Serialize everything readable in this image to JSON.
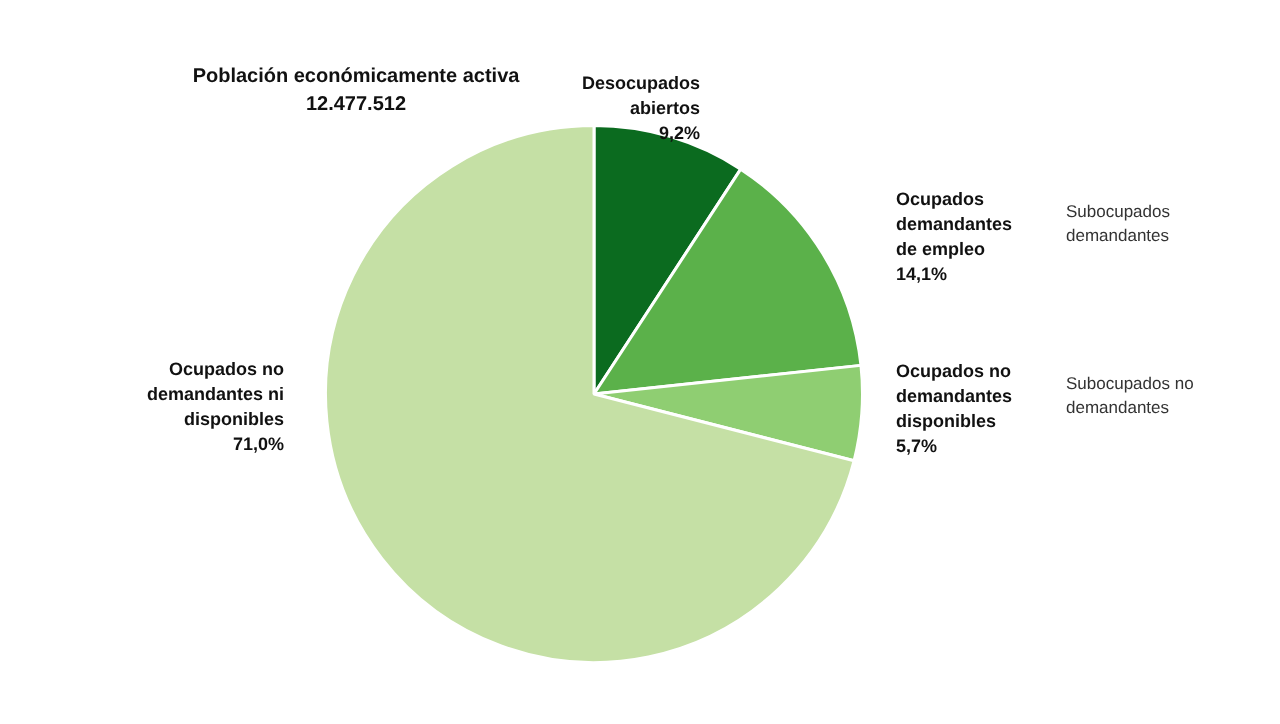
{
  "chart_data": {
    "type": "pie",
    "title": "Población económicamente activa",
    "subtitle": "12.477.512",
    "categories": [
      "Desocupados abiertos",
      "Ocupados demandantes de empleo",
      "Ocupados no demandantes disponibles",
      "Ocupados no demandantes ni disponibles"
    ],
    "values": [
      9.2,
      14.1,
      5.7,
      71.0
    ],
    "value_labels": [
      "9,2%",
      "14,1%",
      "5,7%",
      "71,0%"
    ],
    "colors": [
      "#0b6b1f",
      "#5bb14a",
      "#8fce72",
      "#c5e0a5"
    ],
    "annotations": [
      "Subocupados demandantes",
      "Subocupados no demandantes"
    ],
    "legend": false
  }
}
